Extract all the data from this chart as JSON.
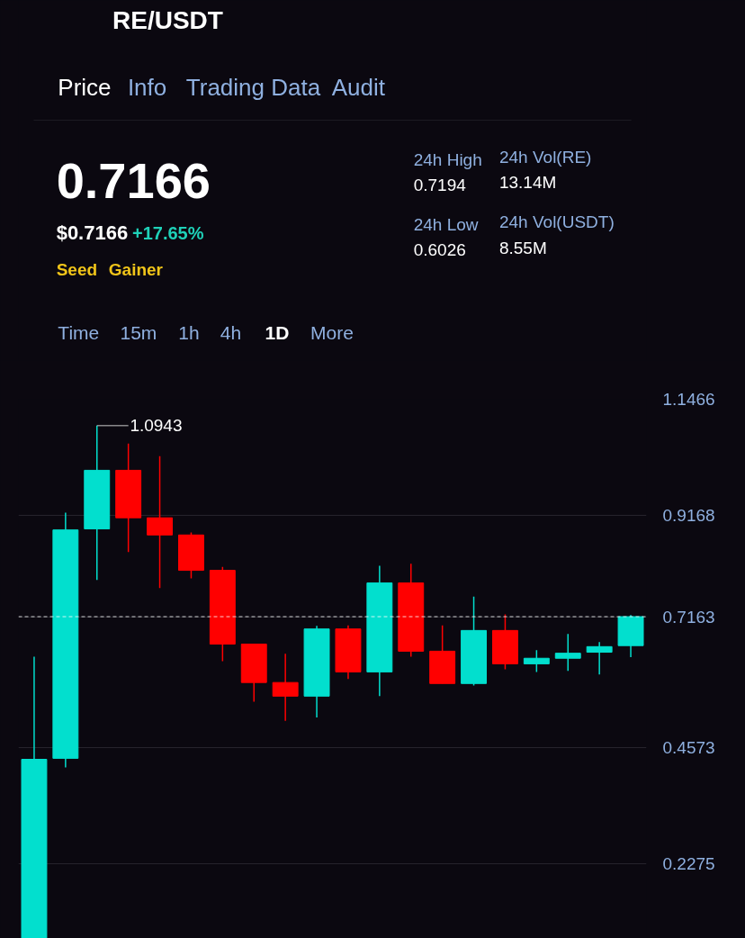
{
  "chart_data": {
    "type": "candlestick",
    "title": "RE/USDT",
    "categories": [
      null,
      null,
      null,
      null,
      null,
      null,
      null,
      null,
      null,
      null,
      null,
      null,
      null,
      null,
      null,
      null,
      null,
      null,
      null,
      null
    ],
    "ohlc": [
      [
        0.08,
        0.637,
        0.08,
        0.434
      ],
      [
        0.436,
        0.922,
        0.418,
        0.888
      ],
      [
        0.89,
        1.0943,
        0.789,
        1.006
      ],
      [
        1.006,
        1.059,
        0.844,
        0.912
      ],
      [
        0.912,
        1.034,
        0.773,
        0.878
      ],
      [
        0.878,
        0.883,
        0.792,
        0.808
      ],
      [
        0.808,
        0.815,
        0.628,
        0.662
      ],
      [
        0.662,
        0.662,
        0.548,
        0.586
      ],
      [
        0.586,
        0.643,
        0.51,
        0.559
      ],
      [
        0.559,
        0.698,
        0.517,
        0.692
      ],
      [
        0.692,
        0.699,
        0.593,
        0.607
      ],
      [
        0.607,
        0.817,
        0.559,
        0.783
      ],
      [
        0.783,
        0.821,
        0.637,
        0.648
      ],
      [
        0.648,
        0.699,
        0.584,
        0.584
      ],
      [
        0.584,
        0.756,
        0.58,
        0.689
      ],
      [
        0.689,
        0.721,
        0.612,
        0.623
      ],
      [
        0.623,
        0.65,
        0.607,
        0.634
      ],
      [
        0.634,
        0.682,
        0.609,
        0.644
      ],
      [
        0.646,
        0.666,
        0.602,
        0.657
      ],
      [
        0.659,
        0.7194,
        0.636,
        0.7163
      ]
    ],
    "colors": [
      "#02dfce",
      "#02dfce",
      "#02dfce",
      "#ff0000",
      "#ff0000",
      "#ff0000",
      "#ff0000",
      "#ff0000",
      "#ff0000",
      "#02dfce",
      "#ff0000",
      "#02dfce",
      "#ff0000",
      "#ff0000",
      "#02dfce",
      "#ff0000",
      "#02dfce",
      "#02dfce",
      "#02dfce",
      "#02dfce"
    ],
    "ylim": [
      0.0795,
      1.1466
    ],
    "yticks": [
      0.2275,
      0.4573,
      0.9168,
      1.1466
    ],
    "grid": "y",
    "tick_labels": "y",
    "ref_lines": [
      {
        "axis": "y",
        "value": 0.7163,
        "label": "0.7163",
        "color": "#ffffff",
        "line_style": "dashed"
      }
    ],
    "annotations": [
      "Price",
      "Info",
      "Trading Data",
      "Audit",
      "0.7166",
      "$0.7166",
      "+17.65%",
      "Seed",
      "Gainer",
      "24h High",
      "0.7194",
      "24h Low",
      "0.6026",
      "24h Vol(RE)",
      "13.14M",
      "24h Vol(USDT)",
      "8.55M",
      "Time",
      "15m",
      "1h",
      "4h",
      "1D",
      "More",
      "1.0943"
    ]
  }
}
